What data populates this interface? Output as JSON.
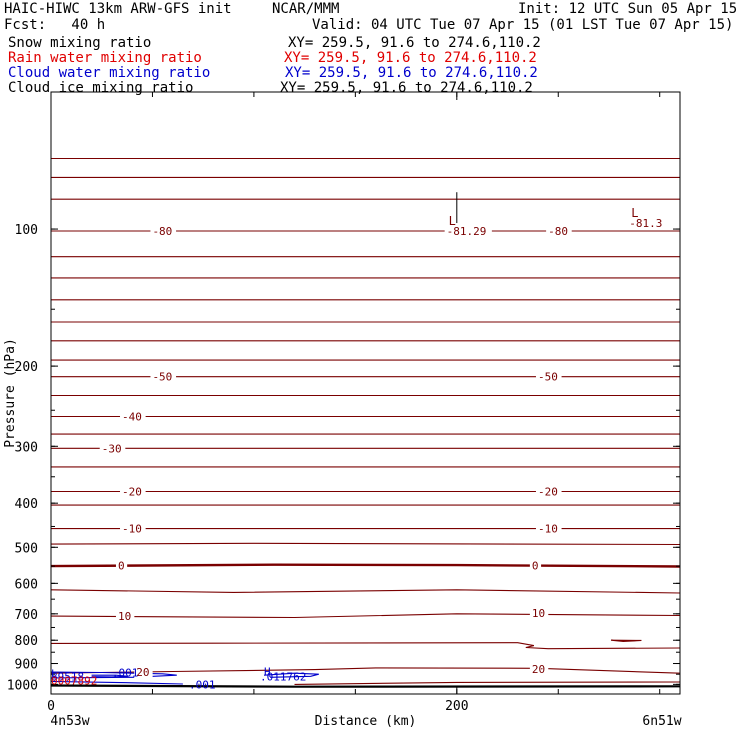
{
  "header": {
    "model_title": "HAIC-HIWC 13km ARW-GFS init",
    "org": "NCAR/MMM",
    "init_label": "Init: 12 UTC Sun 05 Apr 15",
    "fcst_label": "Fcst:   40 h",
    "valid_label": "Valid: 04 UTC Tue 07 Apr 15 (01 LST Tue 07 Apr 15)",
    "fields": [
      {
        "name": "Snow mixing ratio",
        "xy": "XY= 259.5, 91.6 to 274.6,110.2",
        "color": "#000000"
      },
      {
        "name": "Rain water mixing ratio",
        "xy": "XY= 259.5, 91.6 to 274.6,110.2",
        "color": "#e00000"
      },
      {
        "name": "Cloud water mixing ratio",
        "xy": "XY= 259.5, 91.6 to 274.6,110.2",
        "color": "#0000cc"
      },
      {
        "name": "Cloud ice mixing ratio",
        "xy": "XY= 259.5, 91.6 to 274.6,110.2",
        "color": "#000000"
      }
    ]
  },
  "chart_data": {
    "type": "line",
    "xlabel": "Distance (km)",
    "ylabel": "Pressure (hPa)",
    "xlim": [
      0,
      310
    ],
    "ylim": [
      1050,
      50
    ],
    "y_log_scale": true,
    "x_ticks": [
      "0",
      "200"
    ],
    "y_ticks": [
      "100",
      "200",
      "300",
      "400",
      "500",
      "600",
      "700",
      "800",
      "900",
      "1000"
    ],
    "x_endpoints": {
      "left": "4n53w",
      "right": "6n51w"
    },
    "grid": false,
    "colors": {
      "temperature": "#7a0000",
      "cloud_water": "#0000cc",
      "rain_water": "#e00000"
    },
    "isotherm_labels": [
      {
        "text": "-80",
        "x": 50,
        "p": 101
      },
      {
        "text": "-81.29",
        "x": 195,
        "p": 101,
        "extremum": "L"
      },
      {
        "text": "-80",
        "x": 245,
        "p": 101
      },
      {
        "text": "-81.3",
        "x": 285,
        "p": 97,
        "extremum": "L"
      },
      {
        "text": "-50",
        "x": 50,
        "p": 211
      },
      {
        "text": "-50",
        "x": 240,
        "p": 211
      },
      {
        "text": "-40",
        "x": 35,
        "p": 258
      },
      {
        "text": "-30",
        "x": 25,
        "p": 303
      },
      {
        "text": "-20",
        "x": 35,
        "p": 377
      },
      {
        "text": "-20",
        "x": 240,
        "p": 377
      },
      {
        "text": "-10",
        "x": 35,
        "p": 455
      },
      {
        "text": "-10",
        "x": 240,
        "p": 455
      },
      {
        "text": "0",
        "x": 33,
        "p": 548
      },
      {
        "text": "0",
        "x": 237,
        "p": 548
      },
      {
        "text": "10",
        "x": 33,
        "p": 708
      },
      {
        "text": "10",
        "x": 237,
        "p": 697
      },
      {
        "text": "20",
        "x": 42,
        "p": 940
      },
      {
        "text": "20",
        "x": 237,
        "p": 925
      }
    ],
    "cloud_water_labels": [
      {
        "text": ".001",
        "x": 30,
        "p": 942
      },
      {
        "text": "H",
        "x": 105,
        "p": 938
      },
      {
        "text": ".011762",
        "x": 103,
        "p": 960
      },
      {
        "text": ".001",
        "x": 68,
        "p": 1000
      },
      {
        "text": "L",
        "x": 0,
        "p": 947
      },
      {
        "text": "89518",
        "x": 0,
        "p": 962
      }
    ],
    "rain_water_labels": [
      {
        "text": "0007892",
        "x": 0,
        "p": 980
      }
    ]
  }
}
